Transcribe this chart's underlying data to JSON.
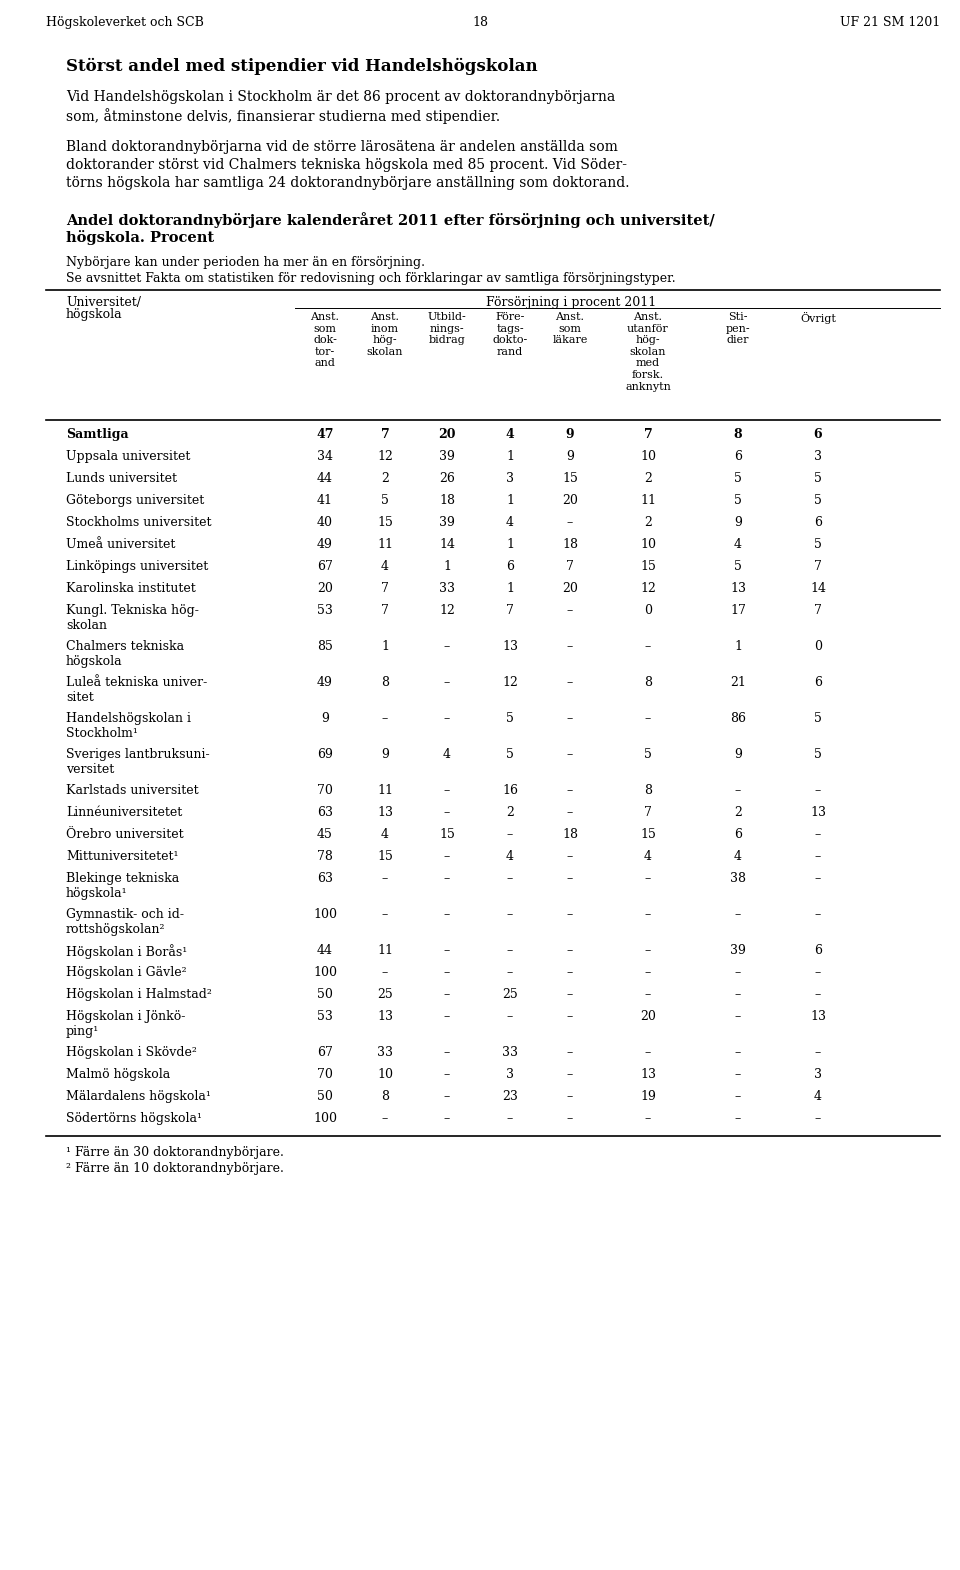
{
  "header_left": "Högskoleverket och SCB",
  "header_center": "18",
  "header_right": "UF 21 SM 1201",
  "title_bold": "Störst andel med stipendier vid Handelshögskolan",
  "paragraph1": "Vid Handelshögskolan i Stockholm är det 86 procent av doktorandnybörjarna som, åtminstone delvis, finansierar studierna med stipendier.",
  "paragraph2": "Bland doktorandnybörjarna vid de större lärosätena är andelen anställda som doktorander störst vid Chalmers tekniska högskola med 85 procent. Vid Söder-törns högskola har samtliga 24 doktorandnybörjare anställning som doktorand.",
  "table_title_bold1": "Andel doktorandnybörjare kalenderåret 2011 efter försörjning och universitet/",
  "table_title_bold2": "högskola. Procent",
  "table_note1": "Nybörjare kan under perioden ha mer än en försörjning.",
  "table_note2": "Se avsnittet Fakta om statistiken för redovisning och förklaringar av samtliga försörjningstyper.",
  "col_header_group": "Försörjning i procent 2011",
  "col_left_header1": "Universitet/",
  "col_left_header2": "högskola",
  "col_headers": [
    "Anst.\nsom\ndok-\ntor-\nand",
    "Anst.\ninom\nhög-\nskolan",
    "Utbild-\nnings-\nbidrag",
    "Före-\ntags-\ndokto-\nrand",
    "Anst.\nsom\nläkare",
    "Anst.\nutanför\nhög-\nskolan\nmed\nforsk.\nanknytn",
    "Sti-\npen-\ndier",
    "Övrigt"
  ],
  "rows": [
    [
      "Samtliga",
      "47",
      "7",
      "20",
      "4",
      "9",
      "7",
      "8",
      "6",
      true
    ],
    [
      "Uppsala universitet",
      "34",
      "12",
      "39",
      "1",
      "9",
      "10",
      "6",
      "3",
      false
    ],
    [
      "Lunds universitet",
      "44",
      "2",
      "26",
      "3",
      "15",
      "2",
      "5",
      "5",
      false
    ],
    [
      "Göteborgs universitet",
      "41",
      "5",
      "18",
      "1",
      "20",
      "11",
      "5",
      "5",
      false
    ],
    [
      "Stockholms universitet",
      "40",
      "15",
      "39",
      "4",
      "–",
      "2",
      "9",
      "6",
      false
    ],
    [
      "Umeå universitet",
      "49",
      "11",
      "14",
      "1",
      "18",
      "10",
      "4",
      "5",
      false
    ],
    [
      "Linköpings universitet",
      "67",
      "4",
      "1",
      "6",
      "7",
      "15",
      "5",
      "7",
      false
    ],
    [
      "Karolinska institutet",
      "20",
      "7",
      "33",
      "1",
      "20",
      "12",
      "13",
      "14",
      false
    ],
    [
      "Kungl. Tekniska hög-\nskolan",
      "53",
      "7",
      "12",
      "7",
      "–",
      "0",
      "17",
      "7",
      false
    ],
    [
      "Chalmers tekniska\nhögskola",
      "85",
      "1",
      "–",
      "13",
      "–",
      "–",
      "1",
      "0",
      false
    ],
    [
      "Luleå tekniska univer-\nsitet",
      "49",
      "8",
      "–",
      "12",
      "–",
      "8",
      "21",
      "6",
      false
    ],
    [
      "Handelshögskolan i\nStockholm¹",
      "9",
      "–",
      "–",
      "5",
      "–",
      "–",
      "86",
      "5",
      false
    ],
    [
      "Sveriges lantbruksuni-\nversitet",
      "69",
      "9",
      "4",
      "5",
      "–",
      "5",
      "9",
      "5",
      false
    ],
    [
      "Karlstads universitet",
      "70",
      "11",
      "–",
      "16",
      "–",
      "8",
      "–",
      "–",
      false
    ],
    [
      "Linnéuniversitetet",
      "63",
      "13",
      "–",
      "2",
      "–",
      "7",
      "2",
      "13",
      false
    ],
    [
      "Örebro universitet",
      "45",
      "4",
      "15",
      "–",
      "18",
      "15",
      "6",
      "–",
      false
    ],
    [
      "Mittuniversitetet¹",
      "78",
      "15",
      "–",
      "4",
      "–",
      "4",
      "4",
      "–",
      false
    ],
    [
      "Blekinge tekniska\nhögskola¹",
      "63",
      "–",
      "–",
      "–",
      "–",
      "–",
      "38",
      "–",
      false
    ],
    [
      "Gymnastik- och id-\nrottshögskolan²",
      "100",
      "–",
      "–",
      "–",
      "–",
      "–",
      "–",
      "–",
      false
    ],
    [
      "Högskolan i Borås¹",
      "44",
      "11",
      "–",
      "–",
      "–",
      "–",
      "39",
      "6",
      false
    ],
    [
      "Högskolan i Gävle²",
      "100",
      "–",
      "–",
      "–",
      "–",
      "–",
      "–",
      "–",
      false
    ],
    [
      "Högskolan i Halmstad²",
      "50",
      "25",
      "–",
      "25",
      "–",
      "–",
      "–",
      "–",
      false
    ],
    [
      "Högskolan i Jönkö-\nping¹",
      "53",
      "13",
      "–",
      "–",
      "–",
      "20",
      "–",
      "13",
      false
    ],
    [
      "Högskolan i Skövde²",
      "67",
      "33",
      "–",
      "33",
      "–",
      "–",
      "–",
      "–",
      false
    ],
    [
      "Malmö högskola",
      "70",
      "10",
      "–",
      "3",
      "–",
      "13",
      "–",
      "3",
      false
    ],
    [
      "Mälardalens högskola¹",
      "50",
      "8",
      "–",
      "23",
      "–",
      "19",
      "–",
      "4",
      false
    ],
    [
      "Södertörns högskola¹",
      "100",
      "–",
      "–",
      "–",
      "–",
      "–",
      "–",
      "–",
      false
    ]
  ],
  "footnote1": "¹ Färre än 30 doktorandnybörjare.",
  "footnote2": "² Färre än 10 doktorandnybörjare.",
  "bg_color": "#ffffff",
  "text_color": "#000000"
}
